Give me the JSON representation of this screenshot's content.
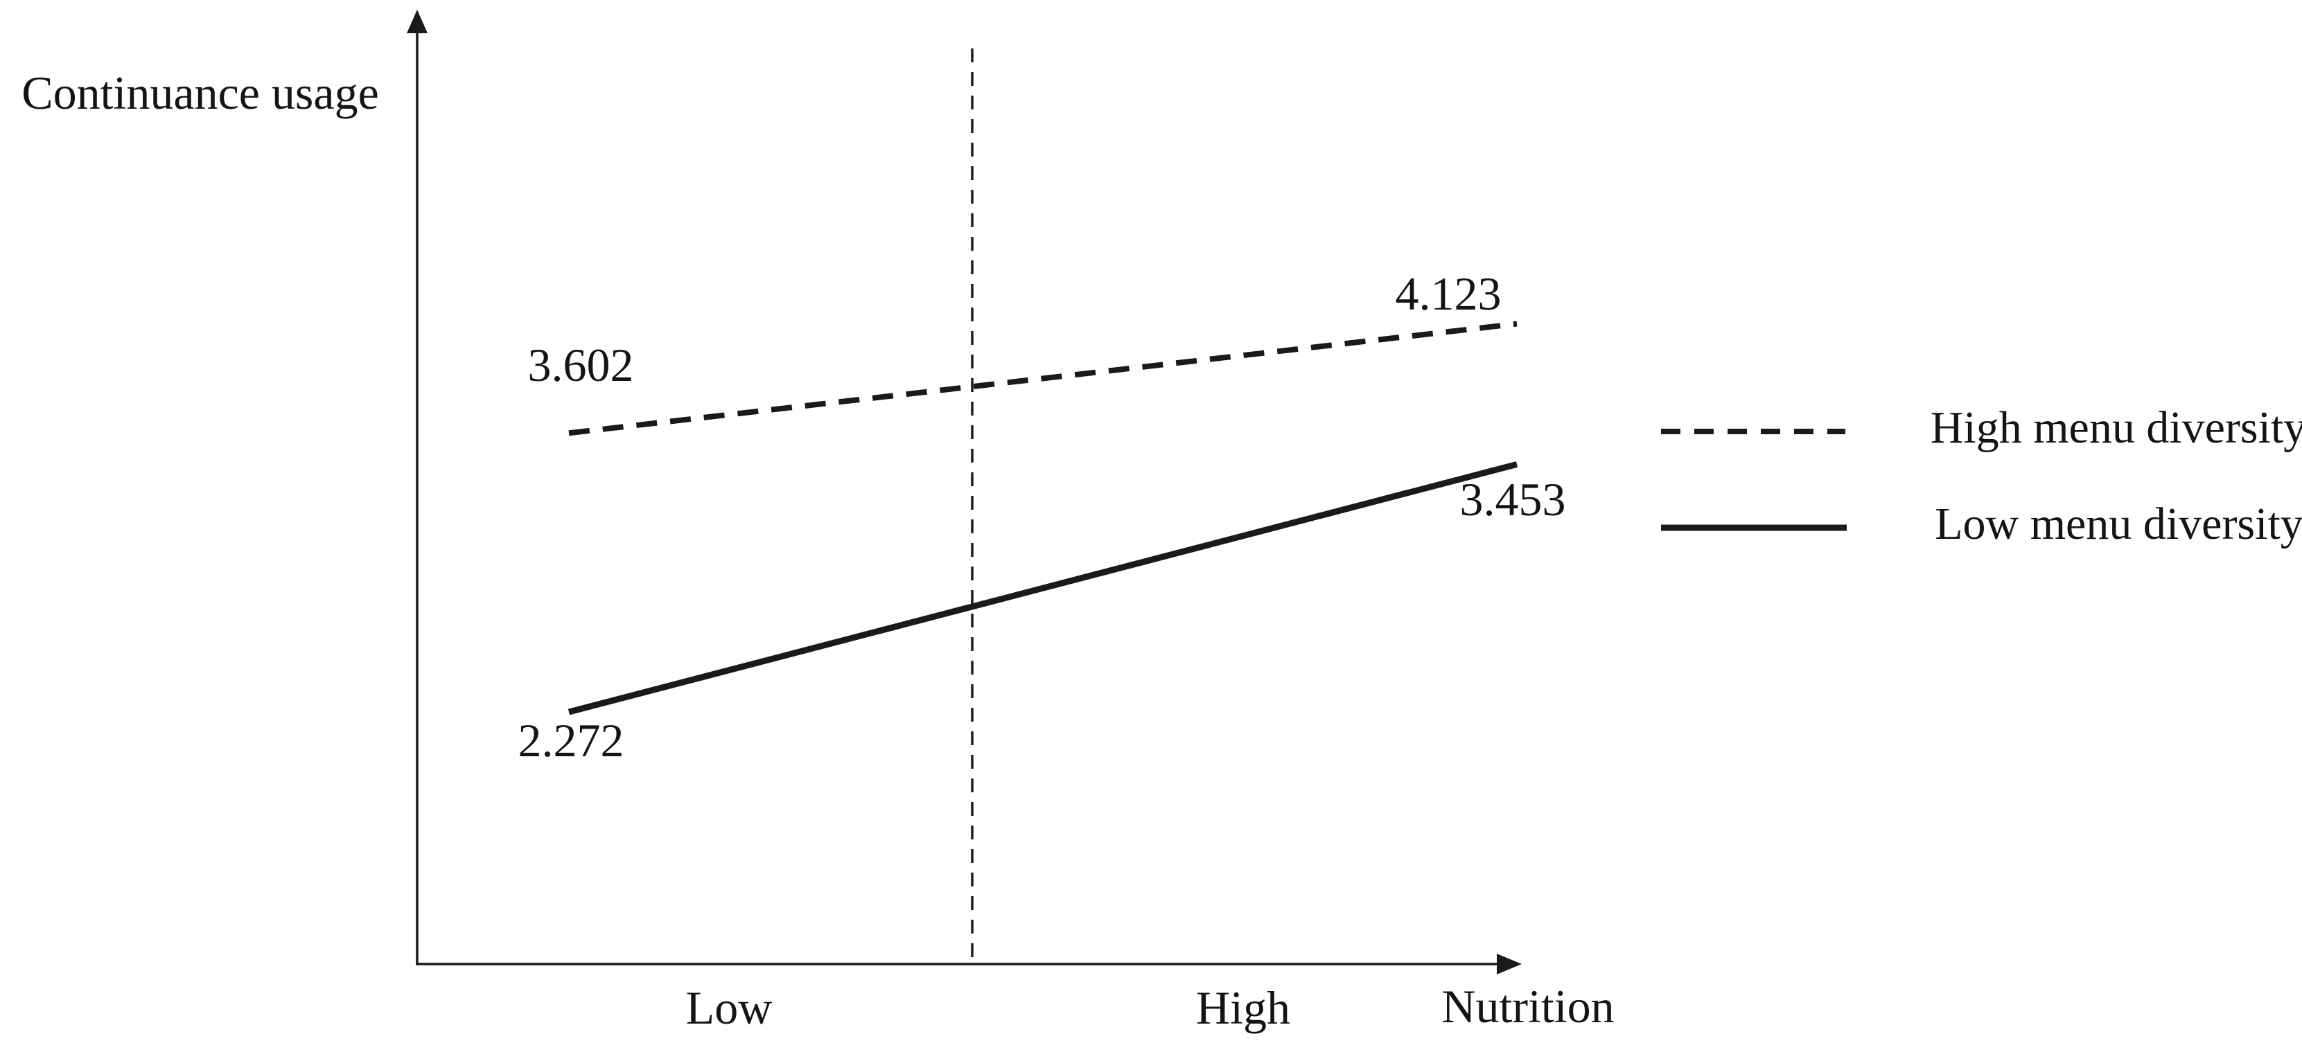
{
  "chart_data": {
    "type": "line",
    "title": "",
    "ylabel": "Continuance usage",
    "xlabel": "Nutrition",
    "categories": [
      "Low",
      "High"
    ],
    "series": [
      {
        "name": "High menu diversity",
        "line_style": "dashed",
        "values": [
          3.602,
          4.123
        ]
      },
      {
        "name": "Low menu diversity",
        "line_style": "solid",
        "values": [
          2.272,
          3.453
        ]
      }
    ],
    "grid": false,
    "axis_style": "arrow-ended axes, no numeric tick marks",
    "legend_position": "right-outside",
    "annotations": [
      {
        "type": "vertical-dashed-line",
        "description": "divider between Low and High regions"
      }
    ],
    "colors": {
      "ink": "#1a1a1a",
      "text": "#141414",
      "background": "#ffffff"
    }
  }
}
